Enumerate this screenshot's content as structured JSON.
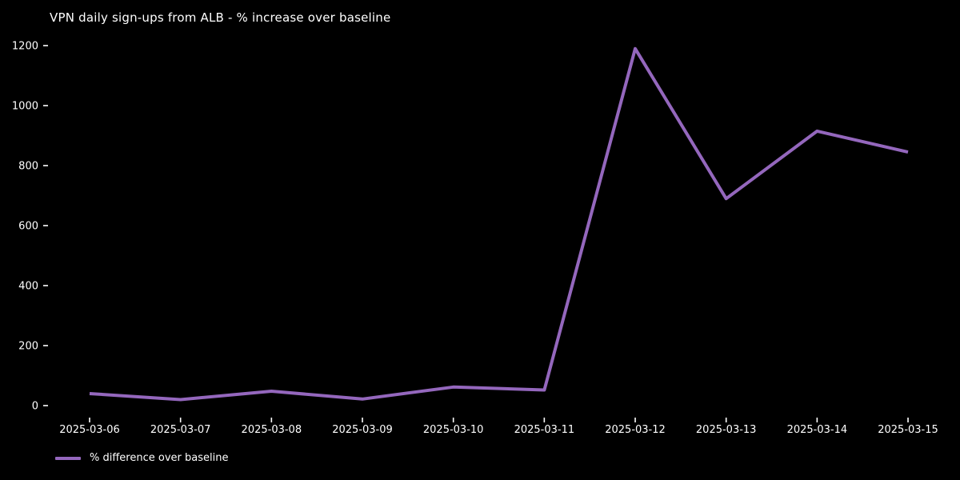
{
  "colors": {
    "background": "#000000",
    "text": "#ffffff",
    "line": "#9467bd"
  },
  "chart_data": {
    "type": "line",
    "title": "VPN daily sign-ups from ALB - % increase over baseline",
    "categories": [
      "2025-03-06",
      "2025-03-07",
      "2025-03-08",
      "2025-03-09",
      "2025-03-10",
      "2025-03-11",
      "2025-03-12",
      "2025-03-13",
      "2025-03-14",
      "2025-03-15"
    ],
    "series": [
      {
        "name": "% difference over baseline",
        "values": [
          40,
          20,
          48,
          22,
          62,
          52,
          1190,
          690,
          915,
          845
        ],
        "color": "#9467bd"
      }
    ],
    "xlabel": "",
    "ylabel": "",
    "yticks": [
      0,
      200,
      400,
      600,
      800,
      1000,
      1200
    ],
    "ylim": [
      0,
      1200
    ],
    "grid": false,
    "legend": {
      "position": "lower-left"
    }
  }
}
